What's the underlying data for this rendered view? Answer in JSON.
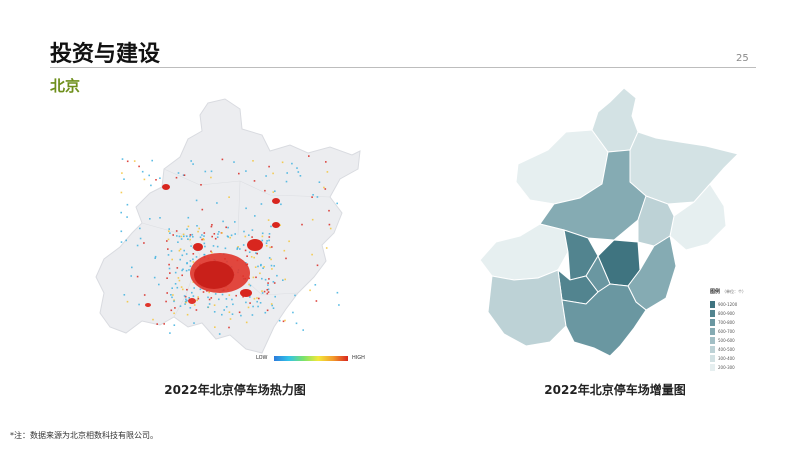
{
  "header": {
    "title": "投资与建设",
    "page_number": "25"
  },
  "section": {
    "title": "北京"
  },
  "heatmap": {
    "caption": "2022年北京停车场热力图",
    "scale": {
      "low_label": "LOW",
      "high_label": "HIGH"
    },
    "colors": {
      "base": "#ecedf0",
      "hot": "#d8261f",
      "warm": "#f3c43a",
      "cool": "#3fb2df"
    }
  },
  "increment_map": {
    "caption": "2022年北京停车场增量图",
    "legend": {
      "title": "图例",
      "unit": "（单位：个）",
      "items": [
        {
          "label": "900-1200",
          "color": "#3f7480"
        },
        {
          "label": "800-900",
          "color": "#52848f"
        },
        {
          "label": "700-800",
          "color": "#6a97a1"
        },
        {
          "label": "600-700",
          "color": "#85abb3"
        },
        {
          "label": "500-600",
          "color": "#a2bfc5"
        },
        {
          "label": "400-500",
          "color": "#bdd2d6"
        },
        {
          "label": "300-400",
          "color": "#d3e2e4"
        },
        {
          "label": "200-300",
          "color": "#e6eff0"
        }
      ]
    }
  },
  "footnote": "*注：数据来源为北京相数科技有限公司。"
}
